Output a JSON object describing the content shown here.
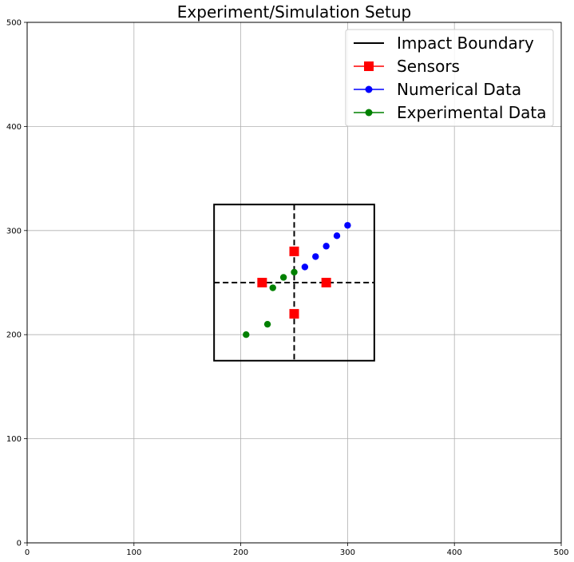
{
  "chart_data": {
    "type": "scatter",
    "title": "Experiment/Simulation Setup",
    "xlabel": "",
    "ylabel": "",
    "xlim": [
      0,
      500
    ],
    "ylim": [
      0,
      500
    ],
    "xticks": [
      0,
      100,
      200,
      300,
      400,
      500
    ],
    "yticks": [
      0,
      100,
      200,
      300,
      400,
      500
    ],
    "grid": true,
    "legend_position": "top-right",
    "impact_boundary": {
      "name": "Impact Boundary",
      "color": "#000000",
      "rect": {
        "x0": 175,
        "y0": 175,
        "x1": 325,
        "y1": 325
      },
      "crosshair_center": [
        250,
        250
      ]
    },
    "series": [
      {
        "name": "Sensors",
        "color": "#ff0000",
        "marker": "square",
        "x": [
          220,
          280,
          250,
          250
        ],
        "y": [
          250,
          250,
          220,
          280
        ]
      },
      {
        "name": "Numerical Data",
        "color": "#0000ff",
        "marker": "circle",
        "x": [
          260,
          270,
          280,
          290,
          300
        ],
        "y": [
          265,
          275,
          285,
          295,
          305
        ]
      },
      {
        "name": "Experimental Data",
        "color": "#008000",
        "marker": "circle",
        "x": [
          205,
          225,
          230,
          240,
          250
        ],
        "y": [
          200,
          210,
          245,
          255,
          260
        ]
      }
    ]
  }
}
